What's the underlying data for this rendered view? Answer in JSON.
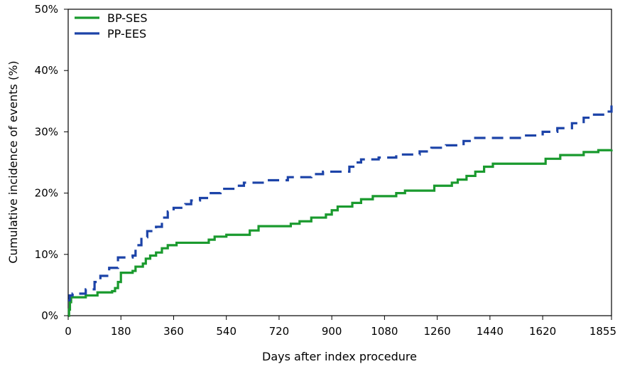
{
  "chart_data": {
    "type": "line",
    "title": "",
    "xlabel": "Days after index procedure",
    "ylabel": "Cumulative incidence of events (%)",
    "xlim": [
      0,
      1855
    ],
    "ylim": [
      0,
      50
    ],
    "x_ticks": [
      0,
      180,
      360,
      540,
      720,
      900,
      1080,
      1260,
      1440,
      1620,
      1855
    ],
    "x_tick_labels": [
      "0",
      "180",
      "360",
      "540",
      "720",
      "900",
      "1080",
      "1260",
      "1440",
      "1620",
      "1855"
    ],
    "y_ticks": [
      0,
      10,
      20,
      30,
      40,
      50
    ],
    "y_tick_labels": [
      "0%",
      "10%",
      "20%",
      "30%",
      "40%",
      "50%"
    ],
    "legend_position": "top-left",
    "grid": false,
    "series": [
      {
        "name": "BP-SES",
        "color": "#1a9a2e",
        "dash": "solid",
        "points": [
          [
            0,
            0.0
          ],
          [
            3,
            1.0
          ],
          [
            6,
            2.2
          ],
          [
            10,
            3.0
          ],
          [
            60,
            3.3
          ],
          [
            100,
            3.8
          ],
          [
            150,
            4.0
          ],
          [
            160,
            4.5
          ],
          [
            170,
            5.5
          ],
          [
            180,
            7.0
          ],
          [
            220,
            7.3
          ],
          [
            230,
            8.0
          ],
          [
            255,
            8.5
          ],
          [
            265,
            9.3
          ],
          [
            280,
            9.8
          ],
          [
            300,
            10.3
          ],
          [
            320,
            11.0
          ],
          [
            340,
            11.5
          ],
          [
            370,
            11.9
          ],
          [
            480,
            12.4
          ],
          [
            500,
            12.9
          ],
          [
            540,
            13.2
          ],
          [
            620,
            13.9
          ],
          [
            650,
            14.6
          ],
          [
            760,
            15.0
          ],
          [
            790,
            15.4
          ],
          [
            830,
            16.0
          ],
          [
            880,
            16.5
          ],
          [
            900,
            17.2
          ],
          [
            920,
            17.8
          ],
          [
            970,
            18.4
          ],
          [
            1000,
            19.0
          ],
          [
            1040,
            19.5
          ],
          [
            1120,
            20.0
          ],
          [
            1150,
            20.4
          ],
          [
            1250,
            21.2
          ],
          [
            1310,
            21.7
          ],
          [
            1330,
            22.2
          ],
          [
            1360,
            22.8
          ],
          [
            1390,
            23.5
          ],
          [
            1420,
            24.3
          ],
          [
            1450,
            24.8
          ],
          [
            1630,
            25.6
          ],
          [
            1680,
            26.2
          ],
          [
            1760,
            26.7
          ],
          [
            1810,
            27.0
          ],
          [
            1855,
            27.1
          ]
        ]
      },
      {
        "name": "PP-EES",
        "color": "#1c43a8",
        "dash": "dashed",
        "points": [
          [
            0,
            2.5
          ],
          [
            5,
            3.3
          ],
          [
            15,
            3.6
          ],
          [
            60,
            4.3
          ],
          [
            90,
            5.5
          ],
          [
            110,
            6.5
          ],
          [
            140,
            7.8
          ],
          [
            170,
            9.5
          ],
          [
            220,
            9.8
          ],
          [
            230,
            11.5
          ],
          [
            250,
            12.8
          ],
          [
            270,
            13.8
          ],
          [
            300,
            14.5
          ],
          [
            320,
            16.0
          ],
          [
            340,
            17.0
          ],
          [
            360,
            17.6
          ],
          [
            400,
            18.2
          ],
          [
            420,
            18.8
          ],
          [
            450,
            19.2
          ],
          [
            480,
            20.0
          ],
          [
            520,
            20.7
          ],
          [
            570,
            21.2
          ],
          [
            600,
            21.7
          ],
          [
            680,
            22.1
          ],
          [
            750,
            22.6
          ],
          [
            830,
            23.1
          ],
          [
            870,
            23.5
          ],
          [
            960,
            24.3
          ],
          [
            980,
            25.0
          ],
          [
            1000,
            25.5
          ],
          [
            1060,
            25.8
          ],
          [
            1120,
            26.3
          ],
          [
            1200,
            26.8
          ],
          [
            1240,
            27.4
          ],
          [
            1290,
            27.8
          ],
          [
            1350,
            28.5
          ],
          [
            1380,
            29.0
          ],
          [
            1490,
            29.0
          ],
          [
            1550,
            29.4
          ],
          [
            1620,
            30.0
          ],
          [
            1670,
            30.6
          ],
          [
            1720,
            31.4
          ],
          [
            1760,
            32.3
          ],
          [
            1790,
            32.8
          ],
          [
            1840,
            33.3
          ],
          [
            1855,
            34.3
          ]
        ]
      }
    ]
  }
}
